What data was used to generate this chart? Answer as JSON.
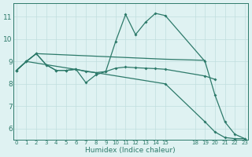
{
  "background_color": "#dff2f2",
  "grid_color": "#c0dede",
  "line_color": "#2d7a6a",
  "xlabel": "Humidex (Indice chaleur)",
  "ylim": [
    5.5,
    11.6
  ],
  "xlim": [
    -0.3,
    23.3
  ],
  "yticks": [
    6,
    7,
    8,
    9,
    10,
    11
  ],
  "xticks": [
    0,
    1,
    2,
    3,
    4,
    5,
    6,
    7,
    8,
    9,
    10,
    11,
    12,
    13,
    14,
    15,
    18,
    19,
    20,
    21,
    22,
    23
  ],
  "curves": [
    {
      "x": [
        0,
        1,
        2,
        3,
        4,
        5,
        6,
        7,
        8,
        9,
        10,
        11,
        12,
        13,
        14,
        15,
        19,
        20,
        21,
        22,
        23
      ],
      "y": [
        8.6,
        9.0,
        9.35,
        8.85,
        8.6,
        8.6,
        8.65,
        8.05,
        8.4,
        8.55,
        9.9,
        11.1,
        10.2,
        10.75,
        11.15,
        11.05,
        9.0,
        7.5,
        6.3,
        5.75,
        5.55
      ],
      "marker": true,
      "lw": 0.9
    },
    {
      "x": [
        0,
        1,
        2,
        15,
        19
      ],
      "y": [
        8.6,
        9.0,
        9.35,
        9.1,
        9.05
      ],
      "marker": false,
      "lw": 0.9
    },
    {
      "x": [
        0,
        1,
        2,
        3,
        4,
        5,
        6,
        7,
        8,
        9,
        10,
        11,
        12,
        13,
        14,
        15,
        19,
        20
      ],
      "y": [
        8.6,
        9.0,
        9.35,
        8.85,
        8.6,
        8.6,
        8.65,
        8.55,
        8.5,
        8.55,
        8.7,
        8.75,
        8.72,
        8.7,
        8.68,
        8.65,
        8.35,
        8.2
      ],
      "marker": true,
      "lw": 0.9
    },
    {
      "x": [
        0,
        1,
        15,
        19,
        20,
        21,
        22,
        23
      ],
      "y": [
        8.6,
        9.0,
        8.0,
        6.3,
        5.85,
        5.6,
        5.55,
        5.55
      ],
      "marker": true,
      "lw": 0.9
    }
  ]
}
